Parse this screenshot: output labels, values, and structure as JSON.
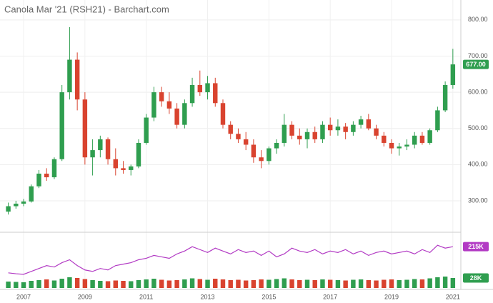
{
  "chart_data": {
    "type": "candlestick",
    "title": "Canola Mar '21 (RSH21) - Barchart.com",
    "x": [
      2006.5,
      2006.75,
      2007.0,
      2007.25,
      2007.5,
      2007.75,
      2008.0,
      2008.25,
      2008.5,
      2008.75,
      2009.0,
      2009.25,
      2009.5,
      2009.75,
      2010.0,
      2010.25,
      2010.5,
      2010.75,
      2011.0,
      2011.25,
      2011.5,
      2011.75,
      2012.0,
      2012.25,
      2012.5,
      2012.75,
      2013.0,
      2013.25,
      2013.5,
      2013.75,
      2014.0,
      2014.25,
      2014.5,
      2014.75,
      2015.0,
      2015.25,
      2015.5,
      2015.75,
      2016.0,
      2016.25,
      2016.5,
      2016.75,
      2017.0,
      2017.25,
      2017.5,
      2017.75,
      2018.0,
      2018.25,
      2018.5,
      2018.75,
      2019.0,
      2019.25,
      2019.5,
      2019.75,
      2020.0,
      2020.25,
      2020.5,
      2020.75,
      2021.0
    ],
    "open": [
      270,
      285,
      292,
      298,
      340,
      375,
      365,
      415,
      600,
      690,
      580,
      420,
      440,
      470,
      415,
      390,
      385,
      395,
      460,
      530,
      600,
      575,
      555,
      510,
      570,
      620,
      600,
      625,
      570,
      510,
      485,
      470,
      455,
      420,
      410,
      445,
      460,
      510,
      480,
      470,
      490,
      470,
      510,
      495,
      505,
      490,
      510,
      525,
      500,
      480,
      460,
      445,
      450,
      455,
      480,
      460,
      495,
      550,
      620
    ],
    "high": [
      295,
      300,
      305,
      345,
      385,
      390,
      420,
      620,
      780,
      710,
      600,
      470,
      480,
      475,
      445,
      410,
      400,
      470,
      540,
      615,
      615,
      600,
      570,
      580,
      640,
      660,
      645,
      640,
      580,
      520,
      500,
      490,
      470,
      440,
      450,
      470,
      540,
      520,
      500,
      500,
      505,
      520,
      530,
      525,
      515,
      520,
      535,
      540,
      510,
      490,
      470,
      460,
      470,
      490,
      490,
      500,
      560,
      630,
      720
    ],
    "low": [
      262,
      278,
      285,
      295,
      335,
      355,
      360,
      410,
      580,
      550,
      400,
      370,
      420,
      400,
      370,
      375,
      370,
      390,
      455,
      520,
      560,
      540,
      500,
      500,
      560,
      590,
      580,
      560,
      500,
      470,
      460,
      440,
      405,
      390,
      400,
      430,
      450,
      470,
      455,
      445,
      460,
      460,
      480,
      480,
      470,
      480,
      500,
      495,
      470,
      450,
      430,
      425,
      440,
      445,
      455,
      455,
      490,
      545,
      610
    ],
    "close": [
      285,
      292,
      298,
      340,
      375,
      365,
      415,
      600,
      690,
      580,
      420,
      440,
      470,
      415,
      390,
      385,
      395,
      460,
      530,
      600,
      575,
      555,
      510,
      570,
      620,
      600,
      625,
      570,
      510,
      485,
      470,
      455,
      420,
      410,
      445,
      460,
      510,
      480,
      470,
      490,
      470,
      510,
      495,
      505,
      490,
      510,
      525,
      500,
      480,
      460,
      445,
      450,
      455,
      480,
      460,
      495,
      550,
      620,
      677
    ],
    "volume": [
      18000,
      17000,
      16000,
      20000,
      22000,
      24000,
      21000,
      26000,
      30000,
      28000,
      25000,
      22000,
      20000,
      19000,
      21000,
      20000,
      19000,
      22000,
      24000,
      26000,
      23000,
      21000,
      22000,
      24000,
      27000,
      25000,
      23000,
      26000,
      24000,
      22000,
      23000,
      21000,
      22000,
      24000,
      23000,
      25000,
      27000,
      24000,
      22000,
      23000,
      22000,
      24000,
      23000,
      22000,
      21000,
      23000,
      24000,
      22000,
      21000,
      23000,
      24000,
      22000,
      23000,
      25000,
      24000,
      27000,
      30000,
      32000,
      28000
    ],
    "open_interest": [
      125000,
      122000,
      120000,
      130000,
      140000,
      150000,
      145000,
      160000,
      170000,
      150000,
      135000,
      130000,
      140000,
      135000,
      150000,
      155000,
      160000,
      170000,
      175000,
      185000,
      180000,
      175000,
      190000,
      200000,
      215000,
      205000,
      195000,
      210000,
      200000,
      190000,
      205000,
      195000,
      200000,
      185000,
      200000,
      180000,
      190000,
      210000,
      200000,
      195000,
      205000,
      190000,
      200000,
      195000,
      205000,
      190000,
      200000,
      185000,
      195000,
      200000,
      190000,
      195000,
      200000,
      190000,
      205000,
      195000,
      220000,
      210000,
      215000
    ],
    "last_price": {
      "value": 677,
      "label": "677.00"
    },
    "last_open_interest": {
      "value": 215000,
      "label": "215K"
    },
    "last_volume": {
      "value": 28000,
      "label": "28K"
    },
    "xlim": [
      2006.23,
      2021.26
    ],
    "xticks": [
      2007,
      2009,
      2011,
      2013,
      2015,
      2017,
      2019,
      2021
    ],
    "ylim": [
      213,
      855
    ],
    "yticks": [
      {
        "value": 300,
        "label": "300.00"
      },
      {
        "value": 400,
        "label": "400.00"
      },
      {
        "value": 500,
        "label": "500.00"
      },
      {
        "value": 600,
        "label": "600.00"
      },
      {
        "value": 700,
        "label": "700.00"
      },
      {
        "value": 800,
        "label": "800.00"
      }
    ],
    "open_interest_lim": [
      100000,
      240000
    ],
    "volume_lim": [
      0,
      200000
    ],
    "up_color": "#2f9e4f",
    "down_color": "#d9432f",
    "open_interest_color": "#b23ac4",
    "grid": true
  }
}
